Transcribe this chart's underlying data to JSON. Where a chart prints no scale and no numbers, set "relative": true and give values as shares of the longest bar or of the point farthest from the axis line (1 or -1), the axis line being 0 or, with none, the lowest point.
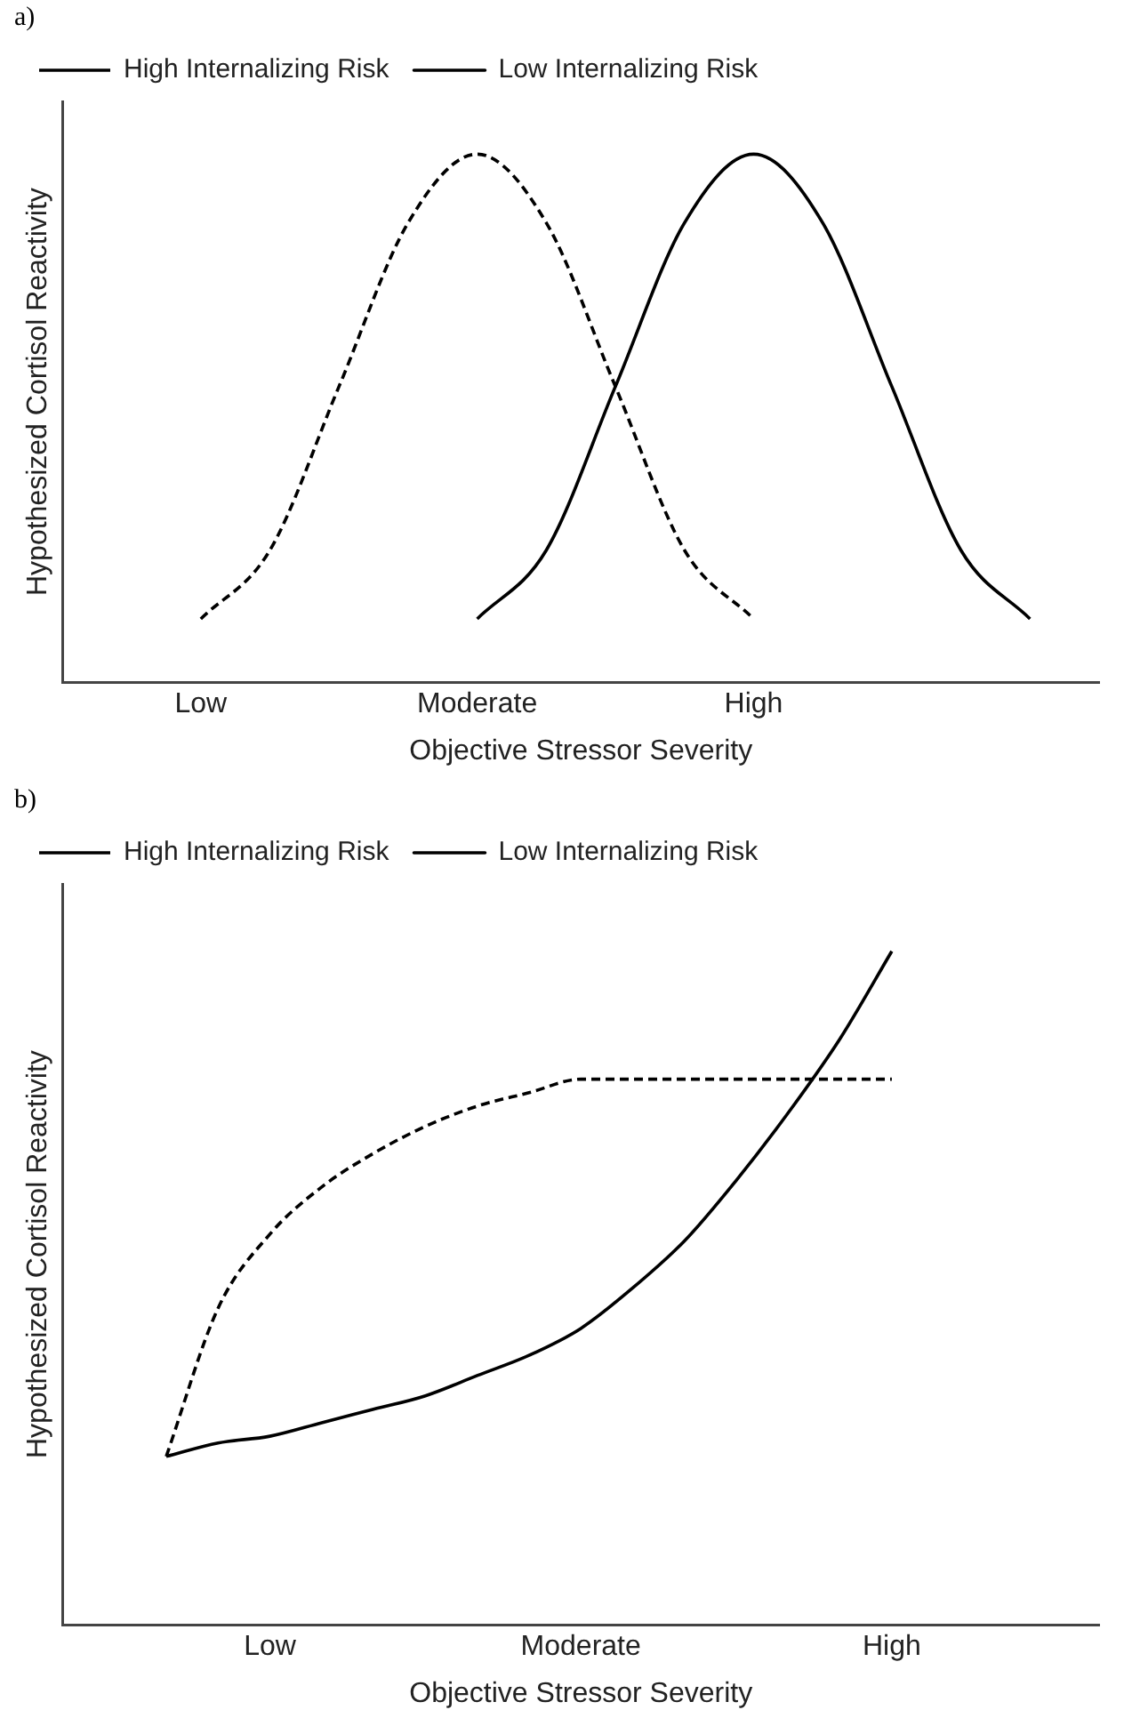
{
  "chart_data": [
    {
      "type": "line",
      "relative": true,
      "annotations": [
        "a)"
      ],
      "xlabel": "Objective Stressor Severity",
      "ylabel": "Hypothesized Cortisol Reactivity",
      "categories": [
        null,
        null,
        "Low",
        null,
        null,
        null,
        "Moderate",
        null,
        null,
        null,
        "High",
        null,
        null,
        null,
        null,
        null
      ],
      "grid": false,
      "legend": "top left",
      "marker": "none",
      "series": [
        {
          "name": "High Internalizing Risk",
          "color": "#000000",
          "line_style": "dashed",
          "values": [
            null,
            null,
            0.12,
            0.25,
            0.56,
            0.87,
            1,
            0.87,
            0.56,
            0.25,
            0.12,
            null,
            null,
            null,
            null,
            null
          ]
        },
        {
          "name": "Low Internalizing Risk",
          "color": "#000000",
          "line_style": "solid",
          "values": [
            null,
            null,
            null,
            null,
            null,
            null,
            0.12,
            0.25,
            0.56,
            0.87,
            1,
            0.87,
            0.56,
            0.25,
            0.12,
            null
          ]
        }
      ]
    },
    {
      "type": "line",
      "relative": true,
      "annotations": [
        "b)"
      ],
      "xlabel": "Objective Stressor Severity",
      "ylabel": "Hypothesized Cortisol Reactivity",
      "categories": [
        null,
        null,
        null,
        null,
        "Low",
        null,
        null,
        null,
        null,
        null,
        "Moderate",
        null,
        null,
        null,
        null,
        null,
        "High",
        null,
        null,
        null,
        null
      ],
      "grid": false,
      "legend": "top left",
      "marker": "none",
      "series": [
        {
          "name": "High Internalizing Risk",
          "color": "#000000",
          "line_style": "dashed",
          "values": [
            null,
            null,
            0.25,
            0.47,
            0.58,
            0.65,
            0.7,
            0.74,
            0.77,
            0.79,
            0.81,
            0.81,
            0.81,
            0.81,
            0.81,
            0.81,
            0.81,
            null,
            null,
            null,
            null
          ]
        },
        {
          "name": "Low Internalizing Risk",
          "color": "#000000",
          "line_style": "solid",
          "values": [
            null,
            null,
            0.25,
            0.27,
            0.28,
            0.3,
            0.32,
            0.34,
            0.37,
            0.4,
            0.44,
            0.5,
            0.57,
            0.66,
            0.76,
            0.87,
            1,
            null,
            null,
            null,
            null
          ]
        }
      ]
    }
  ]
}
